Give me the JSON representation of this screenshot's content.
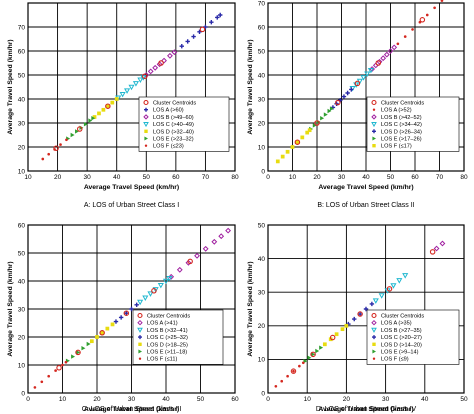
{
  "chart_data": [
    {
      "type": "scatter",
      "caption": "A: LOS of Urban Street Class I",
      "xlabel": "Average Travel Speed (km/hr)",
      "ylabel": "Average Travel Speed (km/hr)",
      "xlim": [
        10,
        80
      ],
      "ylim": [
        10,
        80
      ],
      "xticks": [
        10,
        20,
        30,
        40,
        50,
        60,
        70,
        80
      ],
      "yticks": [
        10,
        20,
        30,
        40,
        50,
        60,
        70
      ],
      "grid": true,
      "legend_position": "bottom-right",
      "series": [
        {
          "name": "Cluster Centroids",
          "marker": "circle-open",
          "color": "#d4271f",
          "x": [
            19.5,
            27.5,
            37,
            49.5,
            55,
            69
          ],
          "y": [
            19.5,
            27.5,
            37,
            49.5,
            55,
            69
          ]
        },
        {
          "name": "LOS A (>60)",
          "marker": "plus",
          "color": "#2a2aa8",
          "x": [
            62,
            64,
            66,
            68,
            70,
            72,
            74,
            75
          ],
          "y": [
            62,
            64,
            66,
            68,
            70,
            72,
            74,
            75
          ]
        },
        {
          "name": "LOS B (>49–60)",
          "marker": "diamond",
          "color": "#a020a0",
          "x": [
            50,
            51.5,
            53,
            54.5,
            56,
            58,
            59.5
          ],
          "y": [
            50,
            51.5,
            53,
            54.5,
            56,
            58,
            59.5
          ]
        },
        {
          "name": "LOS C (>40–49)",
          "marker": "triangle-down",
          "color": "#20b8d0",
          "x": [
            40.5,
            42,
            43.5,
            45,
            46.5,
            48,
            49
          ],
          "y": [
            40.5,
            42,
            43.5,
            45,
            46.5,
            48,
            49
          ]
        },
        {
          "name": "LOS D (>32–40)",
          "marker": "square",
          "color": "#e8dc10",
          "x": [
            32.5,
            34,
            35.5,
            37,
            38.5,
            40
          ],
          "y": [
            32.5,
            34,
            35.5,
            37,
            38.5,
            40
          ]
        },
        {
          "name": "LOS E (>23–32)",
          "marker": "triangle-right",
          "color": "#30a030",
          "x": [
            23.5,
            25,
            26.5,
            28,
            29.5,
            31,
            32
          ],
          "y": [
            23.5,
            25,
            26.5,
            28,
            29.5,
            31,
            32
          ]
        },
        {
          "name": "LOS F (≤23)",
          "marker": "dot",
          "color": "#d4271f",
          "x": [
            15,
            17,
            19,
            21,
            23
          ],
          "y": [
            15,
            17,
            19,
            21,
            23
          ]
        }
      ]
    },
    {
      "type": "scatter",
      "caption": "B: LOS of Urban Street Class II",
      "xlabel": "Average Travel Speed (km/hr)",
      "ylabel": "Average Travel Speed (km/hr)",
      "xlim": [
        0,
        80
      ],
      "ylim": [
        0,
        70
      ],
      "xticks": [
        0,
        10,
        20,
        30,
        40,
        50,
        60,
        70,
        80
      ],
      "yticks": [
        0,
        10,
        20,
        30,
        40,
        50,
        60,
        70
      ],
      "grid": true,
      "legend_position": "bottom-right",
      "series": [
        {
          "name": "Cluster Centroids",
          "marker": "circle-open",
          "color": "#d4271f",
          "x": [
            12,
            20,
            28.5,
            36.5,
            45,
            63
          ],
          "y": [
            12,
            20,
            28.5,
            36.5,
            45,
            63
          ]
        },
        {
          "name": "LOS A (>52)",
          "marker": "dot",
          "color": "#d4271f",
          "x": [
            53,
            56,
            59,
            62,
            65,
            68,
            71,
            74
          ],
          "y": [
            53,
            56,
            59,
            62,
            65,
            68,
            71,
            74
          ]
        },
        {
          "name": "LOS B (>42–52)",
          "marker": "diamond",
          "color": "#a020a0",
          "x": [
            42.5,
            44,
            45.5,
            47,
            48.5,
            50,
            51.5
          ],
          "y": [
            42.5,
            44,
            45.5,
            47,
            48.5,
            50,
            51.5
          ]
        },
        {
          "name": "LOS C (>34–42)",
          "marker": "triangle-down",
          "color": "#20b8d0",
          "x": [
            34.5,
            36,
            37.5,
            39,
            40.5,
            42
          ],
          "y": [
            34.5,
            36,
            37.5,
            39,
            40.5,
            42
          ]
        },
        {
          "name": "LOS D (>26–34)",
          "marker": "plus",
          "color": "#2a2aa8",
          "x": [
            26.5,
            28,
            29.5,
            31,
            32.5,
            34
          ],
          "y": [
            26.5,
            28,
            29.5,
            31,
            32.5,
            34
          ]
        },
        {
          "name": "LOS E (>17–26)",
          "marker": "triangle-right",
          "color": "#30a030",
          "x": [
            17.5,
            19,
            20.5,
            22,
            23.5,
            25,
            26
          ],
          "y": [
            17.5,
            19,
            20.5,
            22,
            23.5,
            25,
            26
          ]
        },
        {
          "name": "LOS F (≤17)",
          "marker": "square",
          "color": "#e8dc10",
          "x": [
            4,
            6,
            8,
            10,
            12,
            14,
            16,
            17
          ],
          "y": [
            4,
            6,
            8,
            10,
            12,
            14,
            16,
            17
          ]
        }
      ]
    },
    {
      "type": "scatter",
      "caption": "C: LOS of Urban Street Class III",
      "xlabel": "Average Travel Speed (km/hr)",
      "ylabel": "Average Travel Speed (km/hr)",
      "xlim": [
        0,
        60
      ],
      "ylim": [
        0,
        60
      ],
      "xticks": [
        0,
        10,
        20,
        30,
        40,
        50,
        60
      ],
      "yticks": [
        0,
        10,
        20,
        30,
        40,
        50,
        60
      ],
      "grid": true,
      "legend_position": "bottom-right",
      "series": [
        {
          "name": "Cluster Centroids",
          "marker": "circle-open",
          "color": "#d4271f",
          "x": [
            9,
            14.5,
            21.5,
            28.5,
            36.5,
            47
          ],
          "y": [
            9,
            14.5,
            21.5,
            28.5,
            36.5,
            47
          ]
        },
        {
          "name": "LOS A (>41)",
          "marker": "diamond",
          "color": "#a020a0",
          "x": [
            41.5,
            44,
            46.5,
            49,
            51.5,
            54,
            56,
            58
          ],
          "y": [
            41.5,
            44,
            46.5,
            49,
            51.5,
            54,
            56,
            58
          ]
        },
        {
          "name": "LOS B (>32–41)",
          "marker": "triangle-down",
          "color": "#20b8d0",
          "x": [
            32.5,
            34,
            35.5,
            37,
            38.5,
            40,
            41
          ],
          "y": [
            32.5,
            34,
            35.5,
            37,
            38.5,
            40,
            41
          ]
        },
        {
          "name": "LOS C (>25–32)",
          "marker": "plus",
          "color": "#2a2aa8",
          "x": [
            25.5,
            27,
            28.5,
            30,
            31.5
          ],
          "y": [
            25.5,
            27,
            28.5,
            30,
            31.5
          ]
        },
        {
          "name": "LOS D (>18–25)",
          "marker": "square",
          "color": "#e8dc10",
          "x": [
            18.5,
            20,
            21.5,
            23,
            24.5
          ],
          "y": [
            18.5,
            20,
            21.5,
            23,
            24.5
          ]
        },
        {
          "name": "LOS E (>11–18)",
          "marker": "triangle-right",
          "color": "#30a030",
          "x": [
            11.5,
            13,
            14.5,
            16,
            17.5
          ],
          "y": [
            11.5,
            13,
            14.5,
            16,
            17.5
          ]
        },
        {
          "name": "LOS F (≤11)",
          "marker": "dot",
          "color": "#d4271f",
          "x": [
            2,
            4,
            6,
            8,
            10,
            11
          ],
          "y": [
            2,
            4,
            6,
            8,
            10,
            11
          ]
        }
      ]
    },
    {
      "type": "scatter",
      "caption": "D: LOS of Urban Street Class IV",
      "xlabel": "Average Travel Speed (km/hr)",
      "ylabel": "Average Travel Speed (km/hr)",
      "xlim": [
        0,
        50
      ],
      "ylim": [
        0,
        50
      ],
      "xticks": [
        0,
        10,
        20,
        30,
        40,
        50
      ],
      "yticks": [
        0,
        10,
        20,
        30,
        40,
        50
      ],
      "grid": true,
      "legend_position": "bottom-right",
      "series": [
        {
          "name": "Cluster Centroids",
          "marker": "circle-open",
          "color": "#d4271f",
          "x": [
            6.5,
            11.5,
            16.5,
            23.5,
            31,
            42
          ],
          "y": [
            6.5,
            11.5,
            16.5,
            23.5,
            31,
            42
          ]
        },
        {
          "name": "LOS A (>35)",
          "marker": "diamond",
          "color": "#a020a0",
          "x": [
            43,
            44.5
          ],
          "y": [
            43,
            44.5
          ]
        },
        {
          "name": "LOS B (>27–35)",
          "marker": "triangle-down",
          "color": "#20b8d0",
          "x": [
            27.5,
            29,
            30.5,
            32,
            33.5,
            35
          ],
          "y": [
            27.5,
            29,
            30.5,
            32,
            33.5,
            35
          ]
        },
        {
          "name": "LOS C (>20–27)",
          "marker": "plus",
          "color": "#2a2aa8",
          "x": [
            20.5,
            22,
            23.5,
            25,
            26.5
          ],
          "y": [
            20.5,
            22,
            23.5,
            25,
            26.5
          ]
        },
        {
          "name": "LOS D (>14–20)",
          "marker": "square",
          "color": "#e8dc10",
          "x": [
            14.5,
            16,
            17.5,
            19,
            20
          ],
          "y": [
            14.5,
            16,
            17.5,
            19,
            20
          ]
        },
        {
          "name": "LOS E (>9–14)",
          "marker": "triangle-right",
          "color": "#30a030",
          "x": [
            9.5,
            10.5,
            11.5,
            12.5,
            13.5
          ],
          "y": [
            9.5,
            10.5,
            11.5,
            12.5,
            13.5
          ]
        },
        {
          "name": "LOS F (≤9)",
          "marker": "dot",
          "color": "#d4271f",
          "x": [
            2,
            3.5,
            5,
            6.5,
            8,
            9
          ],
          "y": [
            2,
            3.5,
            5,
            6.5,
            8,
            9
          ]
        }
      ]
    }
  ]
}
